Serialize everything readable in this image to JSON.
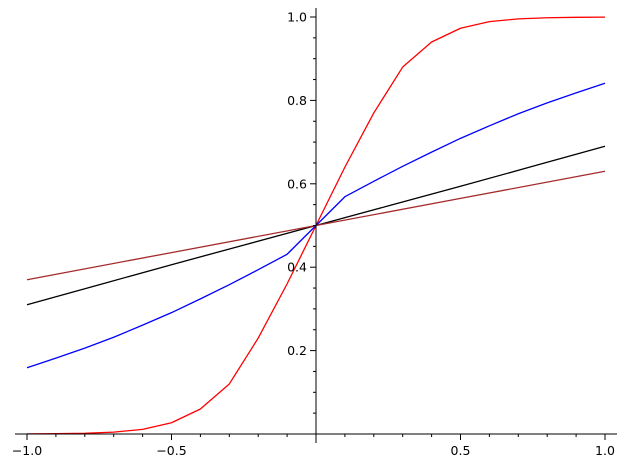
{
  "chart_data": {
    "type": "line",
    "title": "",
    "xlabel": "",
    "ylabel": "",
    "xlim": [
      -1.0,
      1.0
    ],
    "ylim": [
      0.0,
      1.0
    ],
    "grid": false,
    "legend": "none",
    "x_ticks": [
      {
        "value": -1.0,
        "label": "−1.0"
      },
      {
        "value": -0.5,
        "label": "−0.5"
      },
      {
        "value": 0.5,
        "label": "0.5"
      },
      {
        "value": 1.0,
        "label": "1.0"
      }
    ],
    "y_ticks": [
      {
        "value": 0.2,
        "label": "0.2"
      },
      {
        "value": 0.4,
        "label": "0.4"
      },
      {
        "value": 0.6,
        "label": "0.6"
      },
      {
        "value": 0.8,
        "label": "0.8"
      },
      {
        "value": 1.0,
        "label": "1.0"
      }
    ],
    "series": [
      {
        "color": "#ff0000",
        "x": [
          -1.0,
          -0.9,
          -0.8,
          -0.7,
          -0.6,
          -0.5,
          -0.4,
          -0.3,
          -0.2,
          -0.1,
          0.0,
          0.1,
          0.2,
          0.3,
          0.4,
          0.5,
          0.6,
          0.7,
          0.8,
          0.9,
          1.0
        ],
        "y": [
          0.0003,
          0.0007,
          0.0018,
          0.0045,
          0.011,
          0.027,
          0.06,
          0.12,
          0.23,
          0.36,
          0.5,
          0.64,
          0.77,
          0.88,
          0.94,
          0.973,
          0.989,
          0.9955,
          0.9982,
          0.9993,
          0.9997
        ]
      },
      {
        "color": "#0000ff",
        "x": [
          -1.0,
          -0.9,
          -0.8,
          -0.7,
          -0.6,
          -0.5,
          -0.4,
          -0.3,
          -0.2,
          -0.1,
          0.0,
          0.1,
          0.2,
          0.3,
          0.4,
          0.5,
          0.6,
          0.7,
          0.8,
          0.9,
          1.0
        ],
        "y": [
          0.159,
          0.182,
          0.206,
          0.232,
          0.261,
          0.291,
          0.324,
          0.358,
          0.394,
          0.431,
          0.5,
          0.569,
          0.606,
          0.642,
          0.676,
          0.709,
          0.739,
          0.768,
          0.794,
          0.818,
          0.841
        ]
      },
      {
        "color": "#000000",
        "x": [
          -1.0,
          -0.75,
          -0.5,
          -0.25,
          0.0,
          0.25,
          0.5,
          0.75,
          1.0
        ],
        "y": [
          0.31,
          0.358,
          0.406,
          0.453,
          0.5,
          0.547,
          0.594,
          0.642,
          0.69
        ]
      },
      {
        "color": "#a52a2a",
        "x": [
          -1.0,
          -0.5,
          0.0,
          0.5,
          1.0
        ],
        "y": [
          0.37,
          0.435,
          0.5,
          0.565,
          0.63
        ]
      }
    ]
  }
}
